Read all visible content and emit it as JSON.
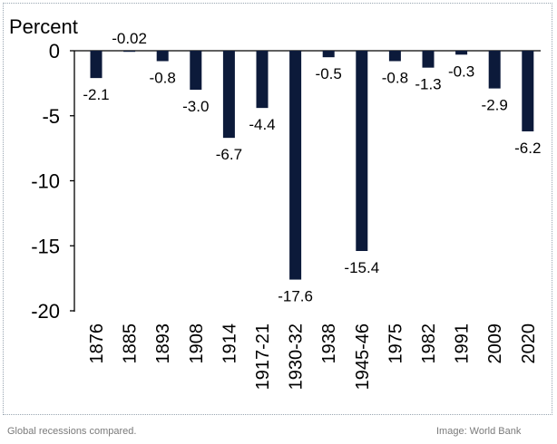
{
  "caption": "Global recessions compared.",
  "credit": "Image: World Bank",
  "chart_data": {
    "type": "bar",
    "ylabel": "Percent",
    "ylim": [
      -20,
      0
    ],
    "yticks": [
      0,
      -5,
      -10,
      -15,
      -20
    ],
    "grid": false,
    "categories": [
      "1876",
      "1885",
      "1893",
      "1908",
      "1914",
      "1917-21",
      "1930-32",
      "1938",
      "1945-46",
      "1975",
      "1982",
      "1991",
      "2009",
      "2020"
    ],
    "values": [
      -2.1,
      -0.02,
      -0.8,
      -3.0,
      -6.7,
      -4.4,
      -17.6,
      -0.5,
      -15.4,
      -0.8,
      -1.3,
      -0.3,
      -2.9,
      -6.2
    ],
    "value_labels": [
      "-2.1",
      "-0.02",
      "-0.8",
      "-3.0",
      "-6.7",
      "-4.4",
      "-17.6",
      "-0.5",
      "-15.4",
      "-0.8",
      "-1.3",
      "-0.3",
      "-2.9",
      "-6.2"
    ],
    "bar_color": "#0c1a3a"
  }
}
